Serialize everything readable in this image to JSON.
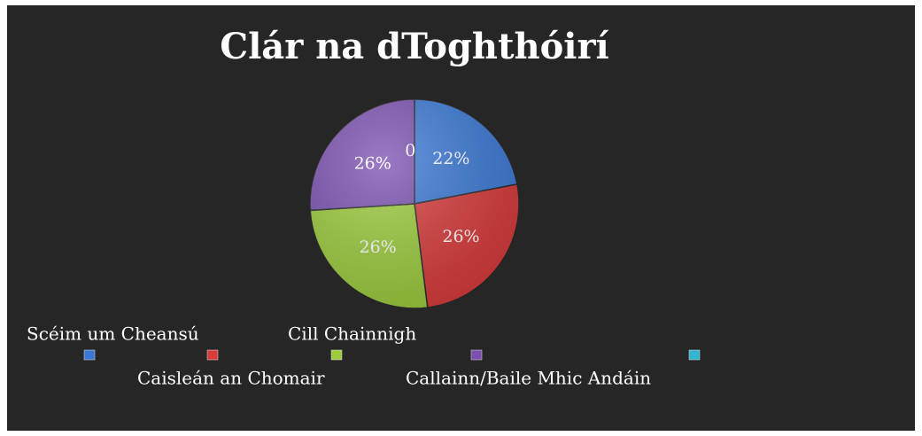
{
  "chart_data": {
    "type": "pie",
    "title": "Clár na dToghthóirí",
    "categories": [
      "Scéim um Cheansú",
      "Caisleán an Chomair",
      "Cill Chainnigh",
      "Callainn/Baile Mhic Andáin",
      null
    ],
    "values": [
      22,
      26,
      26,
      26,
      0
    ],
    "value_labels": [
      "22%",
      "26%",
      "26%",
      "26%",
      "0"
    ],
    "colors": [
      "#3a78d6",
      "#d93a3a",
      "#9ccc3c",
      "#7a4fb0",
      "#33b6cf"
    ],
    "legend": "bottom"
  }
}
